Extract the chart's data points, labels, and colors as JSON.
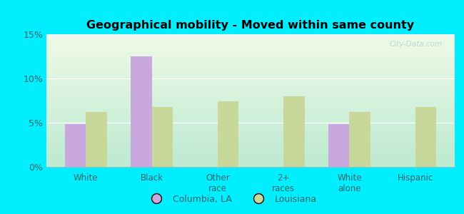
{
  "title": "Geographical mobility - Moved within same county",
  "categories": [
    "White",
    "Black",
    "Other\nrace",
    "2+\nraces",
    "White\nalone",
    "Hispanic"
  ],
  "columbia_values": [
    4.8,
    12.5,
    0,
    0,
    4.8,
    0
  ],
  "louisiana_values": [
    6.2,
    6.8,
    7.4,
    8.0,
    6.2,
    6.8
  ],
  "columbia_color": "#c9a8e0",
  "louisiana_color": "#c8d89a",
  "background_outer": "#00eeff",
  "background_inner_top": "#e8f5e0",
  "background_inner_bottom": "#b8e8d0",
  "ylim": [
    0,
    15
  ],
  "yticks": [
    0,
    5,
    10,
    15
  ],
  "ytick_labels": [
    "0%",
    "5%",
    "10%",
    "15%"
  ],
  "bar_width": 0.32,
  "legend_labels": [
    "Columbia, LA",
    "Louisiana"
  ],
  "watermark": "City-Data.com",
  "tick_label_color": "#336666",
  "title_color": "#000000"
}
